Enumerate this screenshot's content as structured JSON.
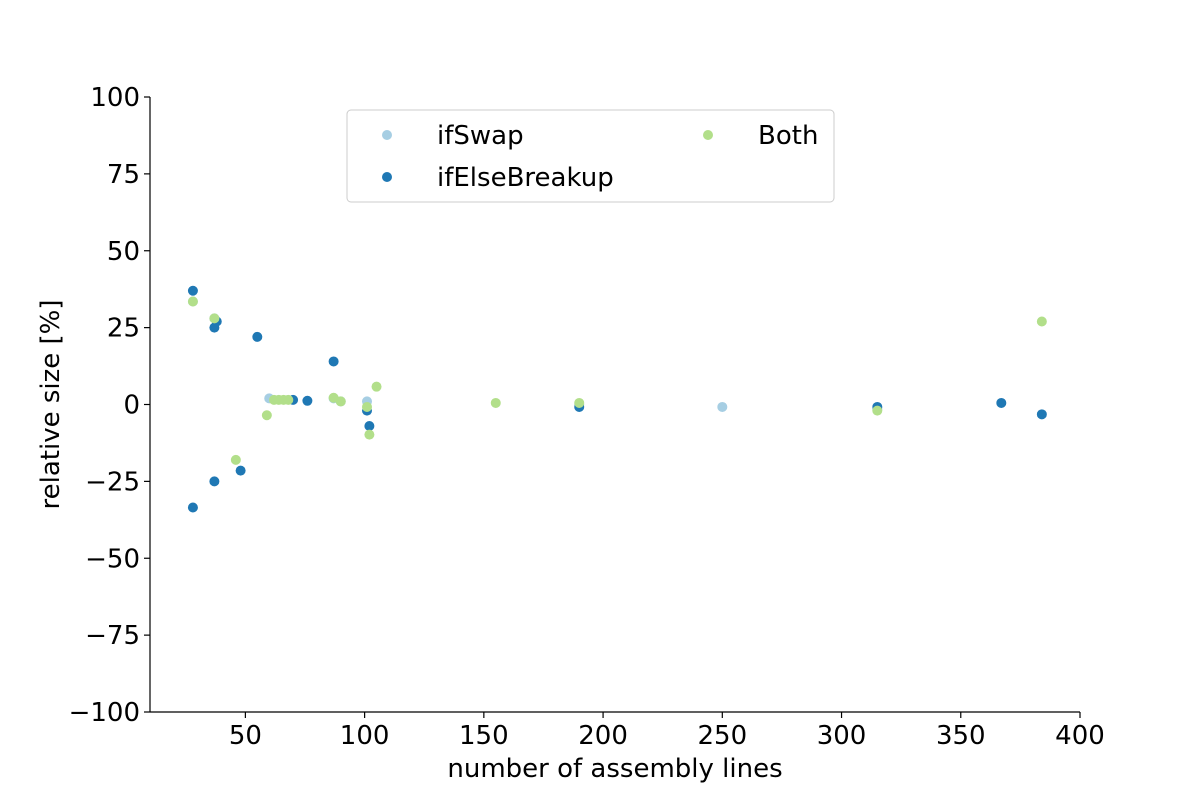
{
  "chart_data": {
    "type": "scatter",
    "xlabel": "number of assembly lines",
    "ylabel": "relative size [%]",
    "xlim": [
      10,
      400
    ],
    "ylim": [
      -100,
      100
    ],
    "xticks": [
      50,
      100,
      150,
      200,
      250,
      300,
      350,
      400
    ],
    "yticks": [
      100,
      75,
      50,
      25,
      0,
      -25,
      -50,
      -75,
      -100
    ],
    "ytick_labels": [
      "100",
      "75",
      "50",
      "25",
      "0",
      "−25",
      "−50",
      "−75",
      "−100"
    ],
    "grid": false,
    "legend": {
      "placement": "upper-center",
      "columns": 2
    },
    "series": [
      {
        "name": "ifSwap",
        "color": "#a6cee3",
        "points": [
          [
            28,
            33.5
          ],
          [
            37,
            28
          ],
          [
            60,
            2
          ],
          [
            87,
            2
          ],
          [
            90,
            1
          ],
          [
            101,
            1
          ],
          [
            190,
            0
          ],
          [
            250,
            -0.8
          ],
          [
            315,
            -1.5
          ]
        ]
      },
      {
        "name": "ifElseBreakup",
        "color": "#1f78b4",
        "points": [
          [
            28,
            37
          ],
          [
            28,
            -33.5
          ],
          [
            37,
            25
          ],
          [
            37,
            -25
          ],
          [
            38,
            27
          ],
          [
            48,
            -21.5
          ],
          [
            55,
            22
          ],
          [
            70,
            1.5
          ],
          [
            76,
            1.2
          ],
          [
            87,
            14
          ],
          [
            101,
            -2
          ],
          [
            102,
            -7
          ],
          [
            190,
            -0.8
          ],
          [
            315,
            -0.8
          ],
          [
            367,
            0.5
          ],
          [
            384,
            -3.2
          ]
        ]
      },
      {
        "name": "Both",
        "color": "#b2df8a",
        "points": [
          [
            28,
            33.5
          ],
          [
            37,
            28
          ],
          [
            46,
            -18
          ],
          [
            59,
            -3.5
          ],
          [
            62,
            1.5
          ],
          [
            64,
            1.5
          ],
          [
            66,
            1.5
          ],
          [
            68,
            1.5
          ],
          [
            87,
            2.2
          ],
          [
            90,
            1
          ],
          [
            101,
            -0.8
          ],
          [
            102,
            -9.8
          ],
          [
            105,
            5.8
          ],
          [
            155,
            0.5
          ],
          [
            190,
            0.5
          ],
          [
            315,
            -2
          ],
          [
            384,
            27
          ]
        ]
      }
    ]
  }
}
